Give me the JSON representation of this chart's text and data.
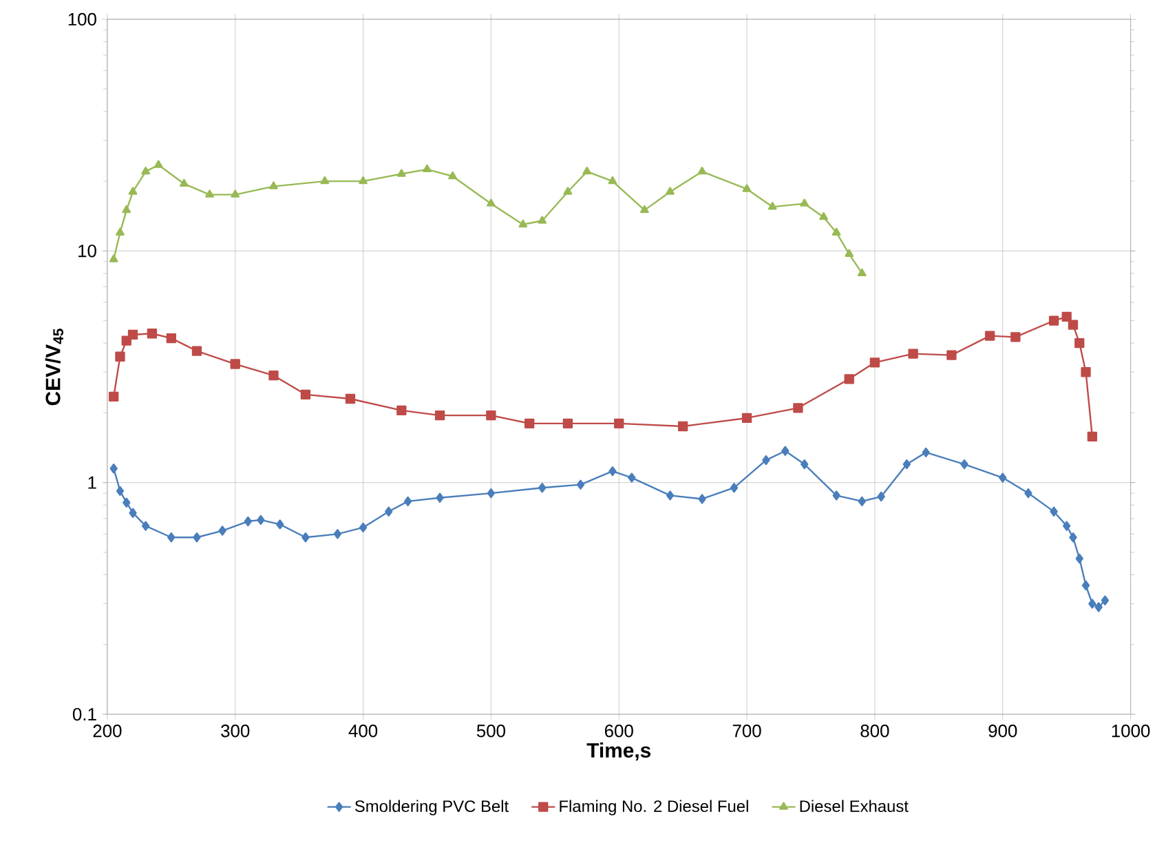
{
  "chart_data": {
    "type": "line",
    "xlabel": "Time,s",
    "ylabel": "CEV/V$_{45}$",
    "log": "y",
    "grid": true,
    "legend": "bottom",
    "line_style": "solid",
    "xlim": [
      200,
      1000
    ],
    "xticks": [
      200,
      300,
      400,
      500,
      600,
      700,
      800,
      900,
      1000
    ],
    "ylim": [
      0.1,
      100
    ],
    "yticks": [
      0.1,
      1,
      10,
      100
    ],
    "series": [
      {
        "name": "Smoldering PVC Belt",
        "color": "#4a7ebb",
        "marker": "diamond",
        "x": [
          205,
          210,
          215,
          220,
          230,
          250,
          270,
          290,
          310,
          320,
          335,
          355,
          380,
          400,
          420,
          435,
          460,
          500,
          540,
          570,
          595,
          610,
          640,
          665,
          690,
          715,
          730,
          745,
          770,
          790,
          805,
          825,
          840,
          870,
          900,
          920,
          940,
          950,
          955,
          960,
          965,
          970,
          975,
          980
        ],
        "values": [
          1.15,
          0.92,
          0.82,
          0.74,
          0.65,
          0.58,
          0.58,
          0.62,
          0.68,
          0.69,
          0.66,
          0.58,
          0.6,
          0.64,
          0.75,
          0.83,
          0.86,
          0.9,
          0.95,
          0.98,
          1.12,
          1.05,
          0.88,
          0.85,
          0.95,
          1.25,
          1.37,
          1.2,
          0.88,
          0.83,
          0.87,
          1.2,
          1.35,
          1.2,
          1.05,
          0.9,
          0.75,
          0.65,
          0.58,
          0.47,
          0.36,
          0.3,
          0.29,
          0.31
        ]
      },
      {
        "name": "Flaming No. 2 Diesel Fuel",
        "color": "#be4b48",
        "marker": "square",
        "x": [
          205,
          210,
          215,
          220,
          235,
          250,
          270,
          300,
          330,
          355,
          390,
          430,
          460,
          500,
          530,
          560,
          600,
          650,
          700,
          740,
          780,
          800,
          830,
          860,
          890,
          910,
          940,
          950,
          955,
          960,
          965,
          970
        ],
        "values": [
          2.35,
          3.5,
          4.1,
          4.35,
          4.4,
          4.2,
          3.7,
          3.25,
          2.9,
          2.4,
          2.3,
          2.05,
          1.95,
          1.95,
          1.8,
          1.8,
          1.8,
          1.75,
          1.9,
          2.1,
          2.8,
          3.3,
          3.6,
          3.55,
          4.3,
          4.25,
          5.0,
          5.2,
          4.8,
          4.0,
          3.0,
          1.58
        ]
      },
      {
        "name": "Diesel Exhaust",
        "color": "#98b954",
        "marker": "triangle",
        "x": [
          205,
          210,
          215,
          220,
          230,
          240,
          260,
          280,
          300,
          330,
          370,
          400,
          430,
          450,
          470,
          500,
          525,
          540,
          560,
          575,
          595,
          620,
          640,
          665,
          700,
          720,
          745,
          760,
          770,
          780,
          790
        ],
        "values": [
          9.2,
          12,
          15,
          18,
          22,
          23.5,
          19.5,
          17.5,
          17.5,
          19,
          20,
          20,
          21.5,
          22.5,
          21,
          16,
          13,
          13.5,
          18,
          22,
          20,
          15,
          18,
          22,
          18.5,
          15.5,
          16,
          14,
          12,
          9.7,
          8
        ]
      }
    ]
  }
}
